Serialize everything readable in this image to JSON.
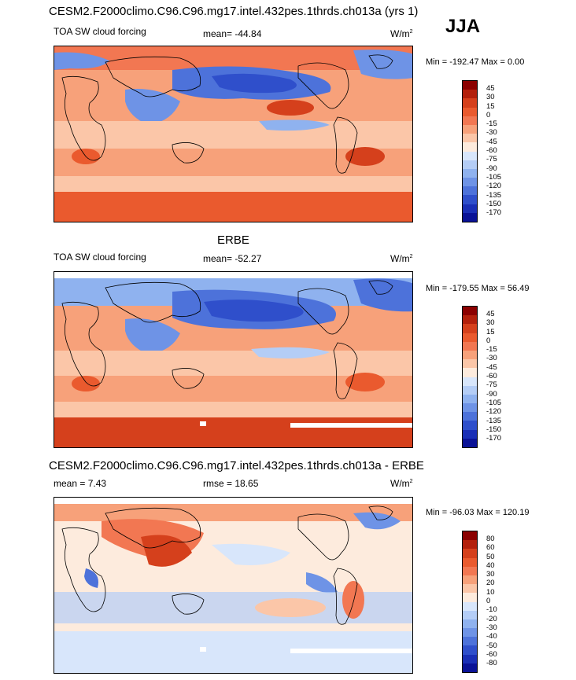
{
  "season": "JJA",
  "chart_data": [
    {
      "type": "heatmap",
      "title": "CESM2.F2000climo.C96.C96.mg17.intel.432pes.1thrds.ch013a (yrs 1)",
      "variable": "TOA SW cloud forcing",
      "mean_text": "mean= -44.84",
      "units": "W/m",
      "units_exp": "2",
      "minmax_text": "Min = -192.47 Max =   0.00",
      "colorbar": {
        "levels": [
          "45",
          "30",
          "15",
          "0",
          "-15",
          "-30",
          "-45",
          "-60",
          "-75",
          "-90",
          "-105",
          "-120",
          "-135",
          "-150",
          "-170"
        ],
        "colors": [
          "#8b0000",
          "#b3200c",
          "#d5401c",
          "#ea5a2e",
          "#f27752",
          "#f7a17a",
          "#fbc6a8",
          "#fdebdd",
          "#d8e6fb",
          "#b4cdf6",
          "#8fb2ef",
          "#6e93e6",
          "#4d72da",
          "#2f4fcb",
          "#1a2fb6",
          "#0a1296"
        ]
      }
    },
    {
      "type": "heatmap",
      "title": "ERBE",
      "variable": "TOA SW cloud forcing",
      "mean_text": "mean= -52.27",
      "units": "W/m",
      "units_exp": "2",
      "minmax_text": "Min = -179.55 Max =  56.49",
      "colorbar": {
        "levels": [
          "45",
          "30",
          "15",
          "0",
          "-15",
          "-30",
          "-45",
          "-60",
          "-75",
          "-90",
          "-105",
          "-120",
          "-135",
          "-150",
          "-170"
        ],
        "colors": [
          "#8b0000",
          "#b3200c",
          "#d5401c",
          "#ea5a2e",
          "#f27752",
          "#f7a17a",
          "#fbc6a8",
          "#fdebdd",
          "#d8e6fb",
          "#b4cdf6",
          "#8fb2ef",
          "#6e93e6",
          "#4d72da",
          "#2f4fcb",
          "#1a2fb6",
          "#0a1296"
        ]
      }
    },
    {
      "type": "heatmap",
      "title": "CESM2.F2000climo.C96.C96.mg17.intel.432pes.1thrds.ch013a - ERBE",
      "mean_text": "mean =   7.43",
      "rmse_text": "rmse =  18.65",
      "units": "W/m",
      "units_exp": "2",
      "minmax_text": "Min = -96.03 Max = 120.19",
      "colorbar": {
        "levels": [
          "80",
          "60",
          "50",
          "40",
          "30",
          "20",
          "10",
          "0",
          "-10",
          "-20",
          "-30",
          "-40",
          "-50",
          "-60",
          "-80"
        ],
        "colors": [
          "#8b0000",
          "#b3200c",
          "#d5401c",
          "#ea5a2e",
          "#f27752",
          "#f7a17a",
          "#fbc6a8",
          "#fdebdd",
          "#d8e6fb",
          "#b4cdf6",
          "#8fb2ef",
          "#6e93e6",
          "#4d72da",
          "#2f4fcb",
          "#1a2fb6",
          "#0a1296"
        ]
      }
    }
  ]
}
